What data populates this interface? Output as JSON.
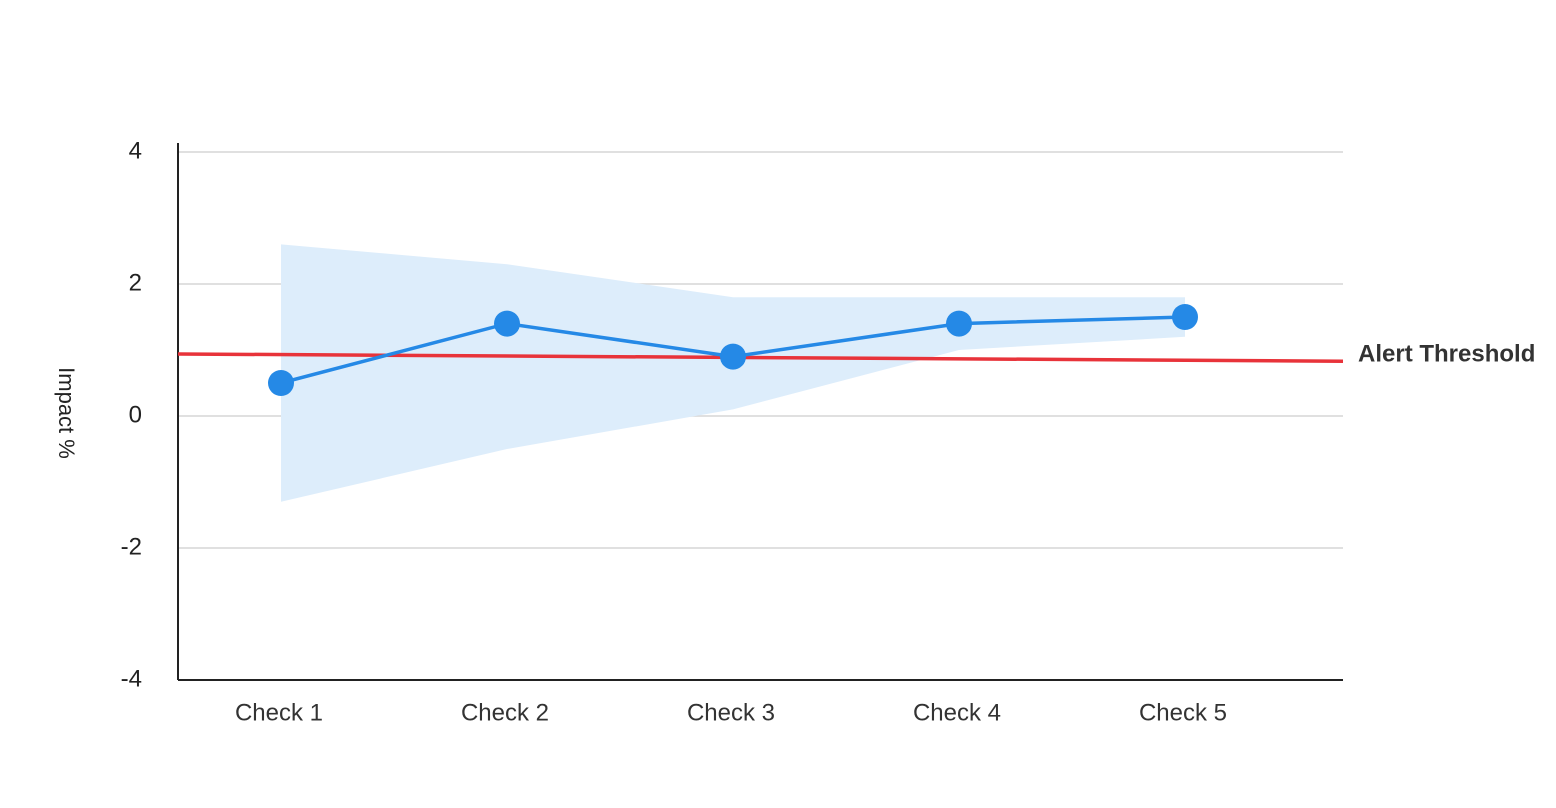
{
  "chart_data": {
    "type": "line",
    "y_label": "Impact %",
    "categories": [
      "Check 1",
      "Check 2",
      "Check 3",
      "Check 4",
      "Check 5"
    ],
    "series": [
      {
        "name": "Impact",
        "color": "#2589e6",
        "values": [
          0.5,
          1.4,
          0.9,
          1.4,
          1.5
        ]
      }
    ],
    "band": {
      "color": "#ddedfb",
      "upper": [
        2.6,
        2.3,
        1.8,
        1.8,
        1.8
      ],
      "lower": [
        -1.3,
        -0.5,
        0.1,
        1.0,
        1.2
      ]
    },
    "threshold": {
      "label": "Alert Threshold",
      "color": "#e8333a",
      "values": [
        0.94,
        0.83
      ]
    },
    "ylim": [
      -4,
      4
    ],
    "yticks": [
      4,
      2,
      0,
      -2,
      -4
    ],
    "grid": true
  }
}
